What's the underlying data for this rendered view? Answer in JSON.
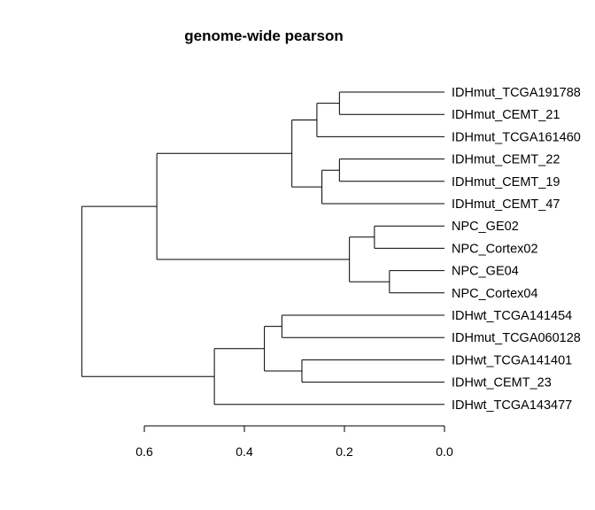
{
  "chart_data": {
    "type": "dendrogram",
    "title": "genome-wide pearson",
    "orientation": "horizontal",
    "axis": {
      "ticks": [
        0.6,
        0.4,
        0.2,
        0.0
      ],
      "tick_labels": [
        "0.6",
        "0.4",
        "0.2",
        "0.0"
      ],
      "range": [
        0.6,
        0.0
      ]
    },
    "leaves": [
      "IDHmut_TCGA191788",
      "IDHmut_CEMT_21",
      "IDHmut_TCGA161460",
      "IDHmut_CEMT_22",
      "IDHmut_CEMT_19",
      "IDHmut_CEMT_47",
      "NPC_GE02",
      "NPC_Cortex02",
      "NPC_GE04",
      "NPC_Cortex04",
      "IDHwt_TCGA141454",
      "IDHmut_TCGA060128",
      "IDHwt_TCGA141401",
      "IDHwt_CEMT_23",
      "IDHwt_TCGA143477"
    ],
    "merges": [
      {
        "left": "L0",
        "right": "L1",
        "height": 0.21
      },
      {
        "left": "M0",
        "right": "L2",
        "height": 0.255
      },
      {
        "left": "L3",
        "right": "L4",
        "height": 0.21
      },
      {
        "left": "M2",
        "right": "L5",
        "height": 0.245
      },
      {
        "left": "M1",
        "right": "M3",
        "height": 0.305
      },
      {
        "left": "L6",
        "right": "L7",
        "height": 0.14
      },
      {
        "left": "L8",
        "right": "L9",
        "height": 0.11
      },
      {
        "left": "M5",
        "right": "M6",
        "height": 0.19
      },
      {
        "left": "M4",
        "right": "M7",
        "height": 0.575
      },
      {
        "left": "L10",
        "right": "L11",
        "height": 0.325
      },
      {
        "left": "L12",
        "right": "L13",
        "height": 0.285
      },
      {
        "left": "M9",
        "right": "M10",
        "height": 0.36
      },
      {
        "left": "M11",
        "right": "L14",
        "height": 0.46
      },
      {
        "left": "M8",
        "right": "M12",
        "height": 0.725
      }
    ]
  }
}
